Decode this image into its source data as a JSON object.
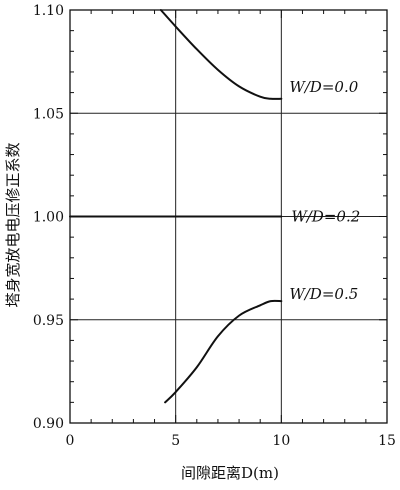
{
  "chart_data": {
    "type": "line",
    "title": "",
    "xlabel": "间隙距离D(m)",
    "ylabel": "塔身宽放电电压修正系数",
    "xlim": [
      0,
      15
    ],
    "ylim": [
      0.9,
      1.1
    ],
    "xticks": [
      0,
      5,
      10,
      15
    ],
    "xtick_labels": [
      "0",
      "5",
      "10",
      "15"
    ],
    "yticks": [
      0.9,
      0.95,
      1.0,
      1.05,
      1.1
    ],
    "ytick_labels": [
      "0.90",
      "0.95",
      "1.00",
      "1.05",
      "1.10"
    ],
    "grid": true,
    "series": [
      {
        "name": "W/D=0.0",
        "x": [
          4.3,
          5.0,
          6.0,
          7.0,
          8.0,
          9.0,
          9.5,
          10.0
        ],
        "y": [
          1.1,
          1.092,
          1.081,
          1.071,
          1.063,
          1.058,
          1.057,
          1.057
        ]
      },
      {
        "name": "W/D=0.2",
        "x": [
          0,
          10
        ],
        "y": [
          1.0,
          1.0
        ]
      },
      {
        "name": "W/D=0.5",
        "x": [
          4.5,
          5.0,
          6.0,
          7.0,
          8.0,
          9.0,
          9.5,
          10.0
        ],
        "y": [
          0.91,
          0.915,
          0.927,
          0.942,
          0.952,
          0.957,
          0.959,
          0.959
        ]
      }
    ]
  }
}
